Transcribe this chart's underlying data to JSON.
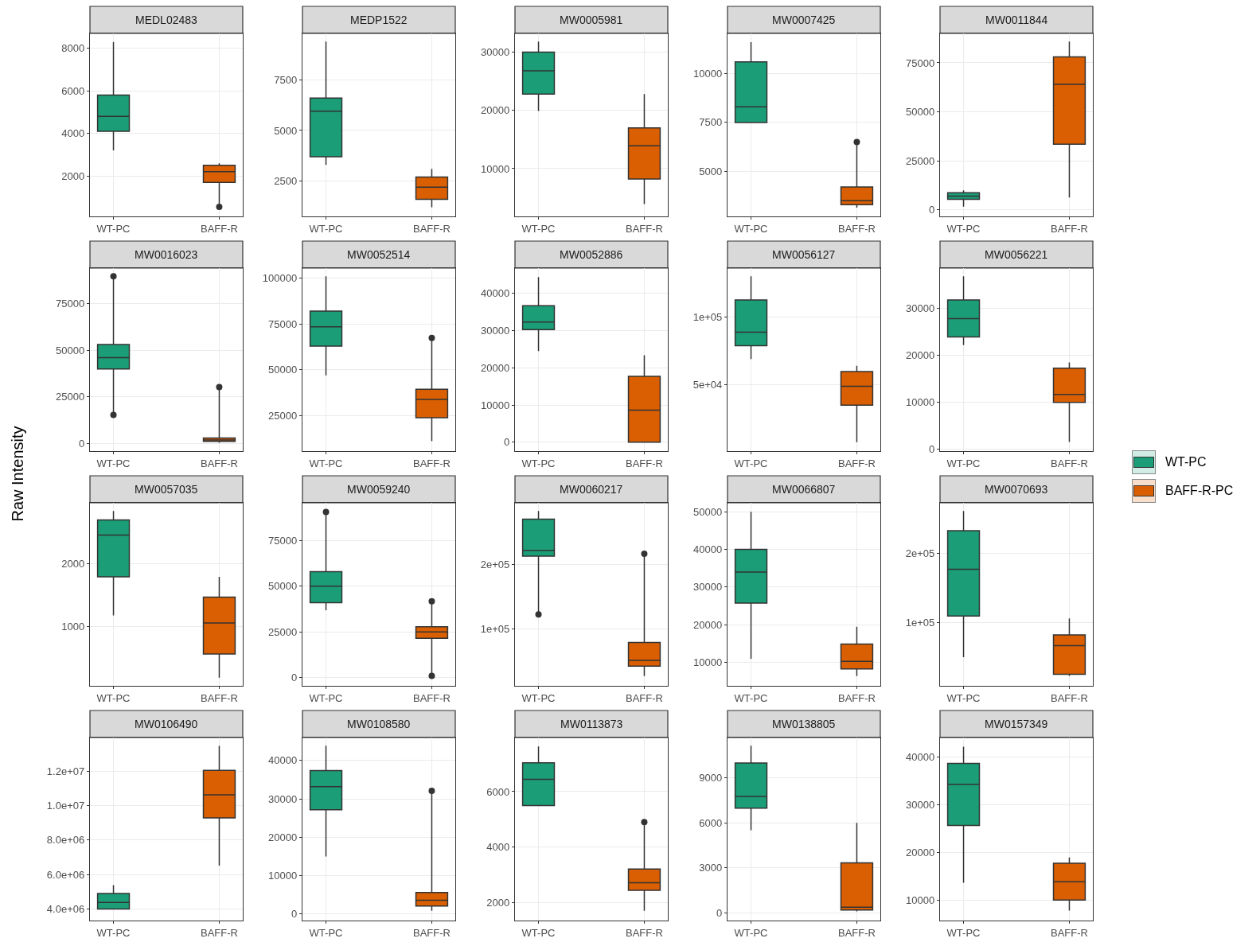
{
  "chart_data": [
    {
      "type": "box",
      "title": "MEDL02483",
      "categories": [
        "WT-PC",
        "BAFF-R"
      ],
      "ylim": [
        100,
        8700
      ],
      "yticks": [
        2000,
        4000,
        6000,
        8000
      ],
      "grid": true,
      "legend": "right",
      "series": [
        {
          "name": "WT-PC",
          "color": "#1b9e77",
          "boxes": [
            {
              "low": 3200,
              "q1": 4100,
              "median": 4800,
              "q3": 5800,
              "high": 8300
            },
            null
          ]
        },
        {
          "name": "BAFF-R-PC",
          "color": "#d95f02",
          "boxes": [
            null,
            {
              "low": 700,
              "q1": 1700,
              "median": 2200,
              "q3": 2500,
              "high": 2600,
              "outliers": [
                550
              ]
            }
          ]
        }
      ]
    },
    {
      "type": "box",
      "title": "MEDP1522",
      "categories": [
        "WT-PC",
        "BAFF-R"
      ],
      "ylim": [
        750,
        9800
      ],
      "yticks": [
        2500,
        5000,
        7500
      ],
      "grid": true,
      "series": [
        {
          "color": "#1b9e77",
          "boxes": [
            {
              "low": 3300,
              "q1": 3700,
              "median": 5950,
              "q3": 6600,
              "high": 9400
            },
            null
          ]
        },
        {
          "color": "#d95f02",
          "boxes": [
            null,
            {
              "low": 1200,
              "q1": 1600,
              "median": 2200,
              "q3": 2700,
              "high": 3100
            }
          ]
        }
      ]
    },
    {
      "type": "box",
      "title": "MW0005981",
      "categories": [
        "WT-PC",
        "BAFF-R"
      ],
      "ylim": [
        1800,
        33200
      ],
      "yticks": [
        10000,
        20000,
        30000
      ],
      "grid": true,
      "series": [
        {
          "color": "#1b9e77",
          "boxes": [
            {
              "low": 19900,
              "q1": 22800,
              "median": 26800,
              "q3": 30000,
              "high": 31800
            },
            null
          ]
        },
        {
          "color": "#d95f02",
          "boxes": [
            null,
            {
              "low": 3900,
              "q1": 8200,
              "median": 13900,
              "q3": 17000,
              "high": 22800
            }
          ]
        }
      ]
    },
    {
      "type": "box",
      "title": "MW0007425",
      "categories": [
        "WT-PC",
        "BAFF-R"
      ],
      "ylim": [
        2700,
        12050
      ],
      "yticks": [
        5000,
        7500,
        10000
      ],
      "grid": true,
      "series": [
        {
          "color": "#1b9e77",
          "boxes": [
            {
              "low": 7500,
              "q1": 7500,
              "median": 8300,
              "q3": 10600,
              "high": 11600
            },
            null
          ]
        },
        {
          "color": "#d95f02",
          "boxes": [
            null,
            {
              "low": 3150,
              "q1": 3300,
              "median": 3500,
              "q3": 4200,
              "high": 6400,
              "outliers": [
                6500
              ]
            }
          ]
        }
      ]
    },
    {
      "type": "box",
      "title": "MW0011844",
      "categories": [
        "WT-PC",
        "BAFF-R"
      ],
      "ylim": [
        -3300,
        90000
      ],
      "yticks": [
        0,
        25000,
        50000,
        75000
      ],
      "grid": true,
      "series": [
        {
          "color": "#1b9e77",
          "boxes": [
            {
              "low": 1700,
              "q1": 5400,
              "median": 7000,
              "q3": 8800,
              "high": 10000
            },
            null
          ]
        },
        {
          "color": "#d95f02",
          "boxes": [
            null,
            {
              "low": 6300,
              "q1": 33500,
              "median": 64000,
              "q3": 78000,
              "high": 85800
            }
          ]
        }
      ]
    },
    {
      "type": "box",
      "title": "MW0016023",
      "categories": [
        "WT-PC",
        "BAFF-R"
      ],
      "ylim": [
        -4000,
        93900
      ],
      "yticks": [
        0,
        25000,
        50000,
        75000
      ],
      "grid": true,
      "ylabel": "Raw Intensity",
      "series": [
        {
          "color": "#1b9e77",
          "boxes": [
            {
              "low": 15400,
              "q1": 40000,
              "median": 46000,
              "q3": 53000,
              "high": 89500,
              "outliers": [
                15400,
                89500
              ]
            },
            null
          ]
        },
        {
          "color": "#d95f02",
          "boxes": [
            null,
            {
              "low": 500,
              "q1": 1200,
              "median": 2000,
              "q3": 3000,
              "high": 30300,
              "outliers": [
                30300
              ]
            }
          ]
        }
      ]
    },
    {
      "type": "box",
      "title": "MW0052514",
      "categories": [
        "WT-PC",
        "BAFF-R"
      ],
      "ylim": [
        5800,
        105400
      ],
      "yticks": [
        25000,
        50000,
        75000,
        100000
      ],
      "grid": true,
      "series": [
        {
          "color": "#1b9e77",
          "boxes": [
            {
              "low": 47000,
              "q1": 63000,
              "median": 73500,
              "q3": 82000,
              "high": 101000
            },
            null
          ]
        },
        {
          "color": "#d95f02",
          "boxes": [
            null,
            {
              "low": 11200,
              "q1": 24000,
              "median": 34000,
              "q3": 39500,
              "high": 67400,
              "outliers": [
                67400
              ]
            }
          ]
        }
      ]
    },
    {
      "type": "box",
      "title": "MW0052886",
      "categories": [
        "WT-PC",
        "BAFF-R"
      ],
      "ylim": [
        -2400,
        46800
      ],
      "yticks": [
        0,
        10000,
        20000,
        30000,
        40000
      ],
      "grid": true,
      "series": [
        {
          "color": "#1b9e77",
          "boxes": [
            {
              "low": 24500,
              "q1": 30300,
              "median": 32300,
              "q3": 36700,
              "high": 44400
            },
            null
          ]
        },
        {
          "color": "#d95f02",
          "boxes": [
            null,
            {
              "low": 0,
              "q1": 0,
              "median": 8600,
              "q3": 17700,
              "high": 23400
            }
          ]
        }
      ]
    },
    {
      "type": "box",
      "title": "MW0056127",
      "categories": [
        "WT-PC",
        "BAFF-R"
      ],
      "ylim": [
        600,
        136600
      ],
      "yticks": [
        {
          "value": 50000,
          "label": "5e+04"
        },
        {
          "value": 100000,
          "label": "1e+05"
        }
      ],
      "grid": true,
      "series": [
        {
          "color": "#1b9e77",
          "boxes": [
            {
              "low": 69000,
              "q1": 79000,
              "median": 89000,
              "q3": 113000,
              "high": 130500
            },
            null
          ]
        },
        {
          "color": "#d95f02",
          "boxes": [
            null,
            {
              "low": 7300,
              "q1": 34800,
              "median": 48800,
              "q3": 59800,
              "high": 64000
            }
          ]
        }
      ]
    },
    {
      "type": "box",
      "title": "MW0056221",
      "categories": [
        "WT-PC",
        "BAFF-R"
      ],
      "ylim": [
        -350,
        38550
      ],
      "yticks": [
        0,
        10000,
        20000,
        30000
      ],
      "grid": true,
      "series": [
        {
          "color": "#1b9e77",
          "boxes": [
            {
              "low": 22200,
              "q1": 23900,
              "median": 27800,
              "q3": 31800,
              "high": 36800
            },
            null
          ]
        },
        {
          "color": "#d95f02",
          "boxes": [
            null,
            {
              "low": 1600,
              "q1": 10000,
              "median": 11700,
              "q3": 17300,
              "high": 18500
            }
          ]
        }
      ]
    },
    {
      "type": "box",
      "title": "MW0057035",
      "categories": [
        "WT-PC",
        "BAFF-R"
      ],
      "ylim": [
        65,
        2960
      ],
      "yticks": [
        1000,
        2000
      ],
      "grid": true,
      "series": [
        {
          "color": "#1b9e77",
          "boxes": [
            {
              "low": 1180,
              "q1": 1790,
              "median": 2450,
              "q3": 2690,
              "high": 2830
            },
            null
          ]
        },
        {
          "color": "#d95f02",
          "boxes": [
            null,
            {
              "low": 195,
              "q1": 570,
              "median": 1060,
              "q3": 1470,
              "high": 1790
            }
          ]
        }
      ]
    },
    {
      "type": "box",
      "title": "MW0059240",
      "categories": [
        "WT-PC",
        "BAFF-R"
      ],
      "ylim": [
        -4500,
        95600
      ],
      "yticks": [
        0,
        25000,
        50000,
        75000
      ],
      "grid": true,
      "series": [
        {
          "color": "#1b9e77",
          "boxes": [
            {
              "low": 36800,
              "q1": 41000,
              "median": 50000,
              "q3": 58000,
              "high": 90600,
              "outliers": [
                90600
              ]
            },
            null
          ]
        },
        {
          "color": "#d95f02",
          "boxes": [
            null,
            {
              "low": 900,
              "q1": 21500,
              "median": 25000,
              "q3": 27800,
              "high": 41700,
              "outliers": [
                900,
                41700
              ]
            }
          ]
        }
      ]
    },
    {
      "type": "box",
      "title": "MW0060217",
      "categories": [
        "WT-PC",
        "BAFF-R"
      ],
      "ylim": [
        12700,
        294900
      ],
      "yticks": [
        {
          "value": 100000,
          "label": "1e+05"
        },
        {
          "value": 200000,
          "label": "2e+05"
        }
      ],
      "grid": true,
      "series": [
        {
          "color": "#1b9e77",
          "boxes": [
            {
              "low": 122800,
              "q1": 212700,
              "median": 221500,
              "q3": 269600,
              "high": 282300,
              "outliers": [
                122800
              ]
            },
            null
          ]
        },
        {
          "color": "#d95f02",
          "boxes": [
            null,
            {
              "low": 27800,
              "q1": 43000,
              "median": 52000,
              "q3": 79700,
              "high": 216300,
              "outliers": [
                216300
              ]
            }
          ]
        }
      ]
    },
    {
      "type": "box",
      "title": "MW0066807",
      "categories": [
        "WT-PC",
        "BAFF-R"
      ],
      "ylim": [
        3700,
        52400
      ],
      "yticks": [
        10000,
        20000,
        30000,
        40000,
        50000
      ],
      "grid": true,
      "series": [
        {
          "color": "#1b9e77",
          "boxes": [
            {
              "low": 10900,
              "q1": 25700,
              "median": 34000,
              "q3": 40000,
              "high": 50000
            },
            null
          ]
        },
        {
          "color": "#d95f02",
          "boxes": [
            null,
            {
              "low": 6300,
              "q1": 8200,
              "median": 10200,
              "q3": 14800,
              "high": 19400
            }
          ]
        }
      ]
    },
    {
      "type": "box",
      "title": "MW0070693",
      "categories": [
        "WT-PC",
        "BAFF-R"
      ],
      "ylim": [
        8300,
        273800
      ],
      "yticks": [
        {
          "value": 100000,
          "label": "1e+05"
        },
        {
          "value": 200000,
          "label": "2e+05"
        }
      ],
      "grid": true,
      "series": [
        {
          "color": "#1b9e77",
          "boxes": [
            {
              "low": 50000,
              "q1": 109500,
              "median": 177400,
              "q3": 233300,
              "high": 262000
            },
            null
          ]
        },
        {
          "color": "#d95f02",
          "boxes": [
            null,
            {
              "low": 22600,
              "q1": 25000,
              "median": 66700,
              "q3": 82100,
              "high": 106000
            }
          ]
        }
      ]
    },
    {
      "type": "box",
      "title": "MW0106490",
      "categories": [
        "WT-PC",
        "BAFF-R"
      ],
      "ylim": [
        3330000,
        13950000
      ],
      "yticks": [
        {
          "value": 4000000,
          "label": "4.0e+06"
        },
        {
          "value": 6000000,
          "label": "6.0e+06"
        },
        {
          "value": 8000000,
          "label": "8.0e+06"
        },
        {
          "value": 10000000,
          "label": "1.0e+07"
        },
        {
          "value": 12000000,
          "label": "1.2e+07"
        }
      ],
      "grid": true,
      "series": [
        {
          "color": "#1b9e77",
          "boxes": [
            {
              "low": 3980000,
              "q1": 4000000,
              "median": 4380000,
              "q3": 4900000,
              "high": 5380000
            },
            null
          ]
        },
        {
          "color": "#d95f02",
          "boxes": [
            null,
            {
              "low": 6520000,
              "q1": 9290000,
              "median": 10620000,
              "q3": 12050000,
              "high": 13470000
            }
          ]
        }
      ]
    },
    {
      "type": "box",
      "title": "MW0108580",
      "categories": [
        "WT-PC",
        "BAFF-R"
      ],
      "ylim": [
        -1700,
        46000
      ],
      "yticks": [
        0,
        10000,
        20000,
        30000,
        40000
      ],
      "grid": true,
      "series": [
        {
          "color": "#1b9e77",
          "boxes": [
            {
              "low": 15000,
              "q1": 27200,
              "median": 33200,
              "q3": 37400,
              "high": 43900
            },
            null
          ]
        },
        {
          "color": "#d95f02",
          "boxes": [
            null,
            {
              "low": 860,
              "q1": 2100,
              "median": 3600,
              "q3": 5600,
              "high": 32100,
              "outliers": [
                32100
              ]
            }
          ]
        }
      ]
    },
    {
      "type": "box",
      "title": "MW0113873",
      "categories": [
        "WT-PC",
        "BAFF-R"
      ],
      "ylim": [
        1350,
        7950
      ],
      "yticks": [
        2000,
        4000,
        6000
      ],
      "grid": true,
      "series": [
        {
          "color": "#1b9e77",
          "boxes": [
            {
              "low": 5500,
              "q1": 5500,
              "median": 6440,
              "q3": 7040,
              "high": 7630
            },
            null
          ]
        },
        {
          "color": "#d95f02",
          "boxes": [
            null,
            {
              "low": 1700,
              "q1": 2440,
              "median": 2710,
              "q3": 3210,
              "high": 4900,
              "outliers": [
                4900
              ]
            }
          ]
        }
      ]
    },
    {
      "type": "box",
      "title": "MW0138805",
      "categories": [
        "WT-PC",
        "BAFF-R"
      ],
      "ylim": [
        -500,
        11670
      ],
      "yticks": [
        0,
        3000,
        6000,
        9000
      ],
      "grid": true,
      "series": [
        {
          "color": "#1b9e77",
          "boxes": [
            {
              "low": 5500,
              "q1": 6980,
              "median": 7750,
              "q3": 9980,
              "high": 11130
            },
            null
          ]
        },
        {
          "color": "#d95f02",
          "boxes": [
            null,
            {
              "low": 110,
              "q1": 200,
              "median": 380,
              "q3": 3330,
              "high": 6000
            }
          ]
        }
      ]
    },
    {
      "type": "box",
      "title": "MW0157349",
      "categories": [
        "WT-PC",
        "BAFF-R"
      ],
      "ylim": [
        5700,
        44000
      ],
      "yticks": [
        10000,
        20000,
        30000,
        40000
      ],
      "grid": true,
      "series": [
        {
          "color": "#1b9e77",
          "boxes": [
            {
              "low": 13600,
              "q1": 25600,
              "median": 34200,
              "q3": 38600,
              "high": 42100
            },
            null
          ]
        },
        {
          "color": "#d95f02",
          "boxes": [
            null,
            {
              "low": 7800,
              "q1": 10000,
              "median": 13800,
              "q3": 17700,
              "high": 18900
            }
          ]
        }
      ]
    }
  ]
}
